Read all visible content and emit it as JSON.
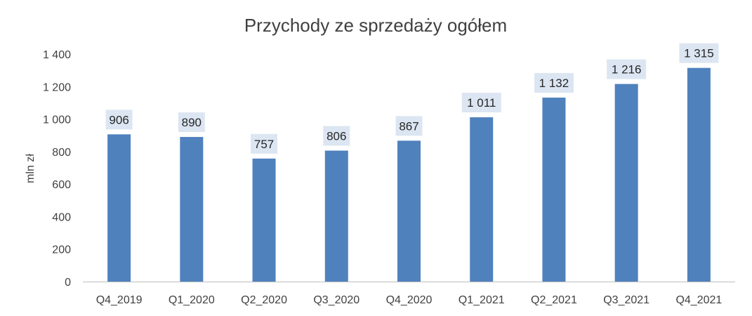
{
  "chart_data": {
    "type": "bar",
    "title": "Przychody ze sprzedaży ogółem",
    "ylabel": "mln zł",
    "xlabel": "",
    "categories": [
      "Q4_2019",
      "Q1_2020",
      "Q2_2020",
      "Q3_2020",
      "Q4_2020",
      "Q1_2021",
      "Q2_2021",
      "Q3_2021",
      "Q4_2021"
    ],
    "values": [
      906,
      890,
      757,
      806,
      867,
      1011,
      1132,
      1216,
      1315
    ],
    "value_labels": [
      "906",
      "890",
      "757",
      "806",
      "867",
      "1 011",
      "1 132",
      "1 216",
      "1 315"
    ],
    "yticks": [
      0,
      200,
      400,
      600,
      800,
      1000,
      1200,
      1400
    ],
    "ytick_labels": [
      "0",
      "200",
      "400",
      "600",
      "800",
      "1 000",
      "1 200",
      "1 400"
    ],
    "ylim": [
      0,
      1400
    ],
    "grid": false,
    "legend": "none",
    "colors": {
      "bar": "#4f81bd",
      "label_bg": "#dce6f2",
      "axis": "#bfbfbf",
      "text": "#404040"
    }
  }
}
